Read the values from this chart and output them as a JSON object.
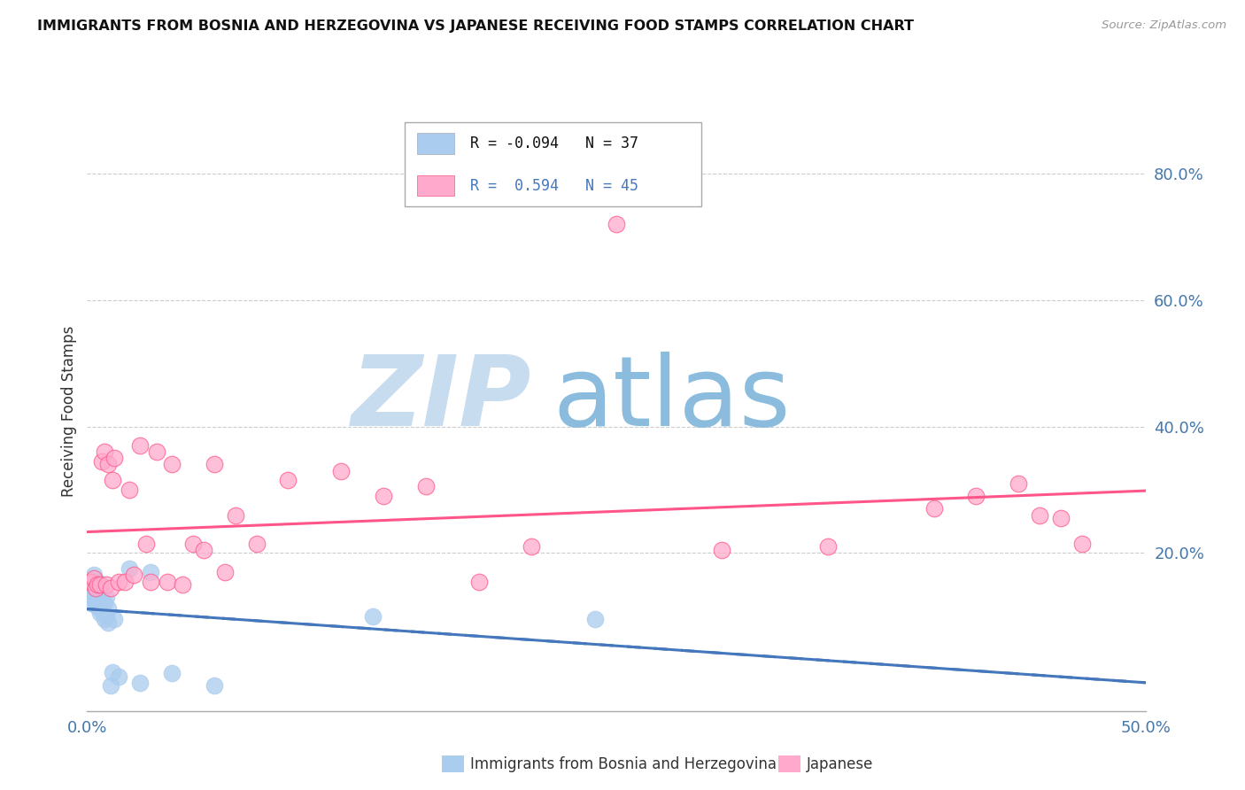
{
  "title": "IMMIGRANTS FROM BOSNIA AND HERZEGOVINA VS JAPANESE RECEIVING FOOD STAMPS CORRELATION CHART",
  "source": "Source: ZipAtlas.com",
  "ylabel": "Receiving Food Stamps",
  "ytick_vals": [
    0.2,
    0.4,
    0.6,
    0.8
  ],
  "ytick_labels": [
    "20.0%",
    "40.0%",
    "60.0%",
    "80.0%"
  ],
  "xlim": [
    0.0,
    0.5
  ],
  "ylim": [
    -0.05,
    0.9
  ],
  "color_blue": "#AACCEE",
  "color_blue_line": "#4477BB",
  "color_pink": "#FFAACC",
  "color_pink_line": "#FF5588",
  "watermark_zip": "ZIP",
  "watermark_atlas": "atlas",
  "watermark_color_zip": "#C8DCF0",
  "watermark_color_atlas": "#8BBCDD",
  "blue_scatter_x": [
    0.001,
    0.001,
    0.002,
    0.002,
    0.002,
    0.003,
    0.003,
    0.003,
    0.004,
    0.004,
    0.005,
    0.005,
    0.005,
    0.005,
    0.006,
    0.006,
    0.006,
    0.007,
    0.007,
    0.007,
    0.008,
    0.008,
    0.009,
    0.009,
    0.01,
    0.01,
    0.011,
    0.012,
    0.013,
    0.015,
    0.02,
    0.025,
    0.03,
    0.04,
    0.06,
    0.135,
    0.24
  ],
  "blue_scatter_y": [
    0.13,
    0.15,
    0.12,
    0.155,
    0.14,
    0.125,
    0.145,
    0.165,
    0.128,
    0.138,
    0.115,
    0.13,
    0.145,
    0.155,
    0.105,
    0.118,
    0.132,
    0.108,
    0.125,
    0.14,
    0.095,
    0.12,
    0.1,
    0.13,
    0.09,
    0.112,
    -0.01,
    0.012,
    0.095,
    0.005,
    0.175,
    -0.005,
    0.17,
    0.01,
    -0.01,
    0.1,
    0.095
  ],
  "pink_scatter_x": [
    0.001,
    0.002,
    0.003,
    0.004,
    0.005,
    0.006,
    0.007,
    0.008,
    0.009,
    0.01,
    0.011,
    0.012,
    0.013,
    0.015,
    0.018,
    0.02,
    0.022,
    0.025,
    0.028,
    0.03,
    0.033,
    0.038,
    0.04,
    0.045,
    0.05,
    0.055,
    0.06,
    0.065,
    0.07,
    0.08,
    0.095,
    0.12,
    0.14,
    0.16,
    0.185,
    0.21,
    0.25,
    0.3,
    0.35,
    0.4,
    0.42,
    0.44,
    0.45,
    0.46,
    0.47
  ],
  "pink_scatter_y": [
    0.155,
    0.155,
    0.16,
    0.145,
    0.15,
    0.15,
    0.345,
    0.36,
    0.15,
    0.34,
    0.145,
    0.315,
    0.35,
    0.155,
    0.155,
    0.3,
    0.165,
    0.37,
    0.215,
    0.155,
    0.36,
    0.155,
    0.34,
    0.15,
    0.215,
    0.205,
    0.34,
    0.17,
    0.26,
    0.215,
    0.315,
    0.33,
    0.29,
    0.305,
    0.155,
    0.21,
    0.72,
    0.205,
    0.21,
    0.27,
    0.29,
    0.31,
    0.26,
    0.255,
    0.215
  ]
}
